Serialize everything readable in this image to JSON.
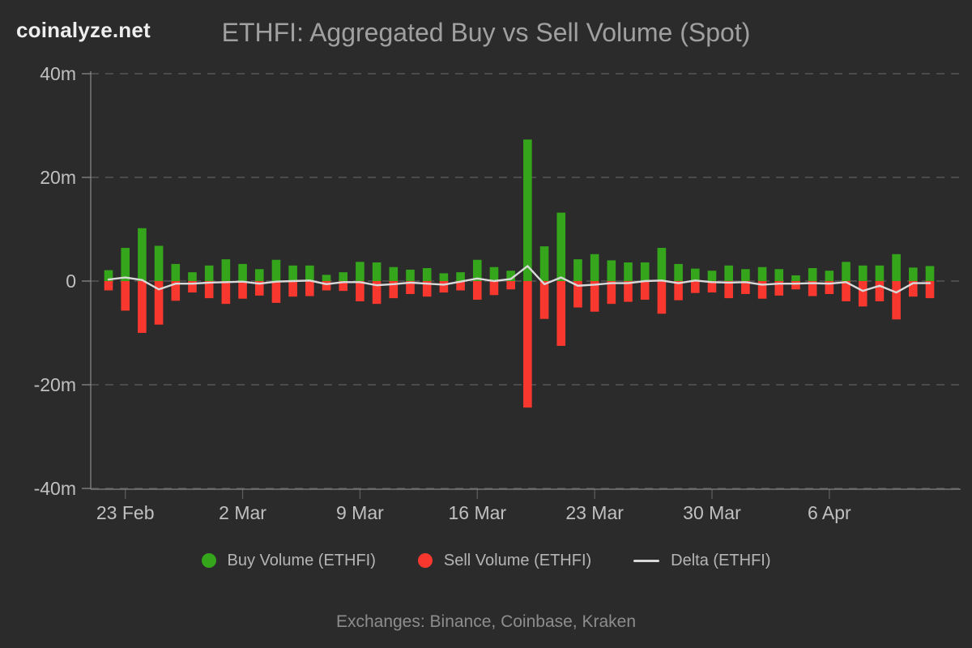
{
  "header": {
    "logo": "coinalyze.net",
    "title": "ETHFI: Aggregated Buy vs Sell Volume (Spot)"
  },
  "footer": {
    "text": "Exchanges: Binance, Coinbase, Kraken"
  },
  "legend": [
    {
      "label": "Buy Volume (ETHFI)",
      "marker": "circle",
      "color": "#35a51c"
    },
    {
      "label": "Sell Volume (ETHFI)",
      "marker": "circle",
      "color": "#f8382e"
    },
    {
      "label": "Delta (ETHFI)",
      "marker": "line",
      "color": "#d9d9d9"
    }
  ],
  "colors": {
    "background": "#2b2b2b",
    "buy": "#35a51c",
    "sell": "#f8382e",
    "delta_line": "#d9d9d9",
    "grid": "#4b4b4b",
    "axis": "#858585",
    "tick_label": "#c0c0c0",
    "title": "#a0a0a0"
  },
  "chart_data": {
    "type": "bar",
    "title": "ETHFI: Aggregated Buy vs Sell Volume (Spot)",
    "unit": "millions",
    "grid": true,
    "legend_position": "bottom",
    "ylim": [
      -40,
      40
    ],
    "y_ticks": [
      {
        "label": "40m",
        "value": 40
      },
      {
        "label": "20m",
        "value": 20
      },
      {
        "label": "0",
        "value": 0
      },
      {
        "label": "-20m",
        "value": -20
      },
      {
        "label": "-40m",
        "value": -40
      }
    ],
    "x_ticks": [
      {
        "label": "23 Feb",
        "day_index": 1
      },
      {
        "label": "2 Mar",
        "day_index": 8
      },
      {
        "label": "9 Mar",
        "day_index": 15
      },
      {
        "label": "16 Mar",
        "day_index": 22
      },
      {
        "label": "23 Mar",
        "day_index": 29
      },
      {
        "label": "30 Mar",
        "day_index": 36
      },
      {
        "label": "6 Apr",
        "day_index": 43
      }
    ],
    "categories": [
      "22 Feb",
      "23 Feb",
      "24 Feb",
      "25 Feb",
      "26 Feb",
      "27 Feb",
      "28 Feb",
      "1 Mar",
      "2 Mar",
      "3 Mar",
      "4 Mar",
      "5 Mar",
      "6 Mar",
      "7 Mar",
      "8 Mar",
      "9 Mar",
      "10 Mar",
      "11 Mar",
      "12 Mar",
      "13 Mar",
      "14 Mar",
      "15 Mar",
      "16 Mar",
      "17 Mar",
      "18 Mar",
      "19 Mar",
      "20 Mar",
      "21 Mar",
      "22 Mar",
      "23 Mar",
      "24 Mar",
      "25 Mar",
      "26 Mar",
      "27 Mar",
      "28 Mar",
      "29 Mar",
      "30 Mar",
      "31 Mar",
      "1 Apr",
      "2 Apr",
      "3 Apr",
      "4 Apr",
      "5 Apr",
      "6 Apr",
      "7 Apr",
      "8 Apr",
      "9 Apr",
      "10 Apr",
      "11 Apr",
      "12 Apr"
    ],
    "series": [
      {
        "name": "Buy Volume (ETHFI)",
        "type": "bar",
        "color": "#35a51c",
        "values": [
          2.1,
          6.4,
          10.2,
          6.8,
          3.3,
          1.7,
          3.0,
          4.2,
          3.3,
          2.3,
          4.1,
          3.0,
          3.0,
          1.2,
          1.7,
          3.7,
          3.6,
          2.7,
          2.2,
          2.5,
          1.5,
          1.7,
          4.1,
          2.7,
          2.0,
          27.3,
          6.7,
          13.2,
          4.2,
          5.2,
          4.0,
          3.6,
          3.6,
          6.4,
          3.3,
          2.4,
          2.0,
          3.0,
          2.3,
          2.7,
          2.3,
          1.1,
          2.5,
          2.0,
          3.7,
          3.0,
          3.0,
          5.2,
          2.6,
          2.9
        ]
      },
      {
        "name": "Sell Volume (ETHFI)",
        "type": "bar",
        "color": "#f8382e",
        "values": [
          -1.8,
          -5.7,
          -10.0,
          -8.4,
          -3.8,
          -2.2,
          -3.3,
          -4.4,
          -3.4,
          -2.8,
          -4.2,
          -3.0,
          -2.9,
          -1.8,
          -1.9,
          -3.9,
          -4.4,
          -3.3,
          -2.5,
          -3.0,
          -2.2,
          -1.8,
          -3.6,
          -2.7,
          -1.6,
          -24.4,
          -7.3,
          -12.5,
          -5.1,
          -5.9,
          -4.4,
          -4.0,
          -3.6,
          -6.3,
          -3.7,
          -2.3,
          -2.2,
          -3.3,
          -2.5,
          -3.4,
          -2.8,
          -1.6,
          -2.9,
          -2.5,
          -3.9,
          -4.9,
          -3.9,
          -7.4,
          -3.0,
          -3.3
        ]
      },
      {
        "name": "Delta (ETHFI)",
        "type": "line",
        "color": "#d9d9d9",
        "values": [
          0.3,
          0.7,
          0.2,
          -1.6,
          -0.5,
          -0.5,
          -0.3,
          -0.2,
          -0.1,
          -0.5,
          -0.1,
          0.0,
          0.1,
          -0.6,
          -0.2,
          -0.2,
          -0.8,
          -0.6,
          -0.3,
          -0.5,
          -0.7,
          -0.1,
          0.5,
          0.0,
          0.4,
          2.9,
          -0.6,
          0.7,
          -0.9,
          -0.7,
          -0.4,
          -0.4,
          0.0,
          0.1,
          -0.4,
          0.1,
          -0.2,
          -0.3,
          -0.2,
          -0.7,
          -0.5,
          -0.5,
          -0.4,
          -0.5,
          -0.2,
          -1.9,
          -0.9,
          -2.2,
          -0.4,
          -0.4
        ]
      }
    ]
  }
}
